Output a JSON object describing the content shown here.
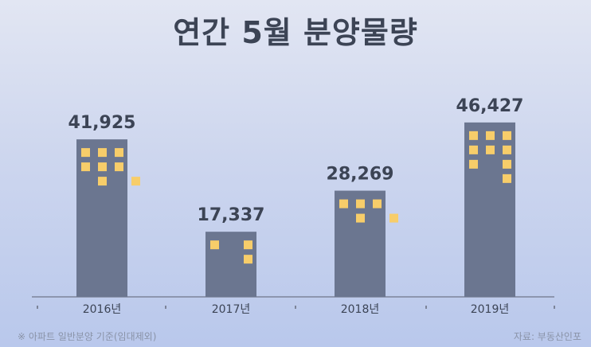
{
  "chart_data": {
    "type": "bar",
    "title": "연간 5월 분양물량",
    "categories": [
      "2016년",
      "2017년",
      "2018년",
      "2019년"
    ],
    "values": [
      41925,
      17337,
      28269,
      46427
    ],
    "value_labels": [
      "41,925",
      "17,337",
      "28,269",
      "46,427"
    ],
    "ylim": [
      0,
      60000
    ],
    "grid": false,
    "legend": "none",
    "colors": {
      "bar": "#6b7690",
      "window": "#f7cd6a",
      "text": "#3c4455",
      "axis": "#7d8499"
    }
  },
  "footnote": "※ 아파트 일반분양 기준(임대제외)",
  "source": "자료: 부동산인포"
}
